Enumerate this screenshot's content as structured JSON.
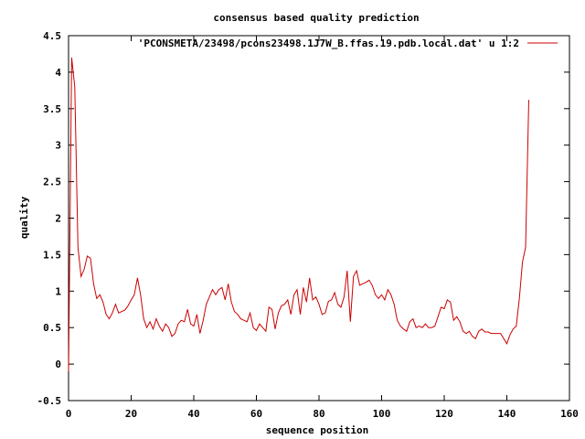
{
  "chart_data": {
    "type": "line",
    "title": "consensus based quality prediction",
    "xlabel": "sequence position",
    "ylabel": "quality",
    "xlim": [
      0,
      160
    ],
    "ylim": [
      -0.5,
      4.5
    ],
    "xticks": [
      0,
      20,
      40,
      60,
      80,
      100,
      120,
      140,
      160
    ],
    "yticks": [
      -0.5,
      0,
      0.5,
      1,
      1.5,
      2,
      2.5,
      3,
      3.5,
      4,
      4.5
    ],
    "xtick_labels": [
      "0",
      "20",
      "40",
      "60",
      "80",
      "100",
      "120",
      "140",
      "160"
    ],
    "ytick_labels": [
      "-0.5",
      "0",
      "0.5",
      "1",
      "1.5",
      "2",
      "2.5",
      "3",
      "3.5",
      "4",
      "4.5"
    ],
    "grid": false,
    "legend_position": "top-right",
    "series": [
      {
        "name": "'PCONSMETA/23498/pcons23498.1J7W_B.ffas.19.pdb.local.dat' u 1:2",
        "color": "#cc0000",
        "x": [
          0,
          1,
          2,
          3,
          4,
          5,
          6,
          7,
          8,
          9,
          10,
          11,
          12,
          13,
          14,
          15,
          16,
          17,
          18,
          19,
          20,
          21,
          22,
          23,
          24,
          25,
          26,
          27,
          28,
          29,
          30,
          31,
          32,
          33,
          34,
          35,
          36,
          37,
          38,
          39,
          40,
          41,
          42,
          43,
          44,
          45,
          46,
          47,
          48,
          49,
          50,
          51,
          52,
          53,
          54,
          55,
          56,
          57,
          58,
          59,
          60,
          61,
          62,
          63,
          64,
          65,
          66,
          67,
          68,
          69,
          70,
          71,
          72,
          73,
          74,
          75,
          76,
          77,
          78,
          79,
          80,
          81,
          82,
          83,
          84,
          85,
          86,
          87,
          88,
          89,
          90,
          91,
          92,
          93,
          94,
          95,
          96,
          97,
          98,
          99,
          100,
          101,
          102,
          103,
          104,
          105,
          106,
          107,
          108,
          109,
          110,
          111,
          112,
          113,
          114,
          115,
          116,
          117,
          118,
          119,
          120,
          121,
          122,
          123,
          124,
          125,
          126,
          127,
          128,
          129,
          130,
          131,
          132,
          133,
          134,
          135,
          136,
          137,
          138,
          139,
          140,
          141,
          142,
          143,
          144,
          145,
          146,
          147
        ],
        "y": [
          -0.1,
          4.2,
          3.8,
          1.6,
          1.2,
          1.3,
          1.48,
          1.45,
          1.1,
          0.9,
          0.95,
          0.85,
          0.68,
          0.62,
          0.7,
          0.82,
          0.7,
          0.72,
          0.74,
          0.8,
          0.88,
          0.95,
          1.18,
          0.95,
          0.62,
          0.5,
          0.58,
          0.48,
          0.62,
          0.52,
          0.45,
          0.55,
          0.5,
          0.38,
          0.42,
          0.55,
          0.6,
          0.58,
          0.75,
          0.55,
          0.52,
          0.68,
          0.42,
          0.6,
          0.82,
          0.92,
          1.02,
          0.95,
          1.02,
          1.05,
          0.88,
          1.1,
          0.85,
          0.72,
          0.68,
          0.62,
          0.6,
          0.58,
          0.7,
          0.5,
          0.46,
          0.55,
          0.5,
          0.45,
          0.78,
          0.75,
          0.48,
          0.7,
          0.8,
          0.82,
          0.88,
          0.68,
          0.95,
          1.02,
          0.68,
          1.05,
          0.85,
          1.18,
          0.88,
          0.92,
          0.82,
          0.68,
          0.7,
          0.86,
          0.88,
          0.98,
          0.82,
          0.78,
          0.92,
          1.28,
          0.58,
          1.2,
          1.28,
          1.08,
          1.1,
          1.12,
          1.15,
          1.08,
          0.95,
          0.9,
          0.95,
          0.88,
          1.02,
          0.95,
          0.82,
          0.6,
          0.52,
          0.48,
          0.45,
          0.58,
          0.62,
          0.5,
          0.52,
          0.5,
          0.55,
          0.5,
          0.5,
          0.52,
          0.65,
          0.78,
          0.76,
          0.88,
          0.85,
          0.6,
          0.65,
          0.58,
          0.45,
          0.42,
          0.45,
          0.38,
          0.35,
          0.45,
          0.48,
          0.44,
          0.44,
          0.42,
          0.42,
          0.42,
          0.42,
          0.35,
          0.28,
          0.4,
          0.48,
          0.52,
          0.9,
          1.4,
          1.6,
          3.62
        ]
      }
    ]
  }
}
